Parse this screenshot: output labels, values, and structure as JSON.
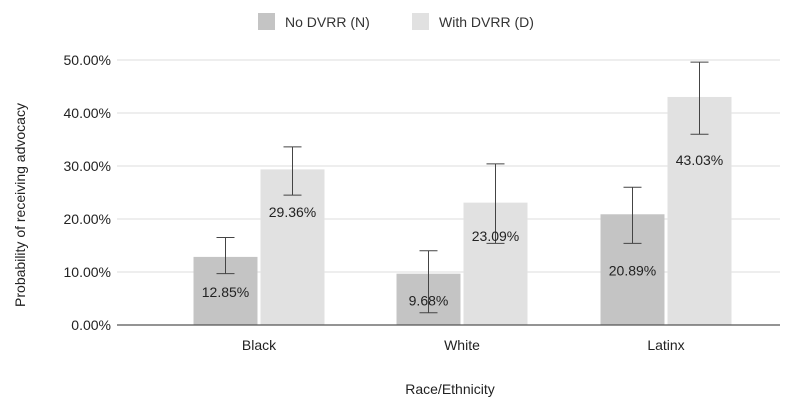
{
  "chart_data": {
    "type": "bar",
    "title": "",
    "xlabel": "Race/Ethnicity",
    "ylabel": "Probability of receiving advocacy",
    "ylim": [
      0,
      50
    ],
    "yticks": [
      "0.00%",
      "10.00%",
      "20.00%",
      "30.00%",
      "40.00%",
      "50.00%"
    ],
    "grid": true,
    "legend_position": "top-center",
    "categories": [
      "Black",
      "White",
      "Latinx"
    ],
    "series": [
      {
        "name": "No DVRR (N)",
        "color": "#c4c4c4",
        "values": [
          12.85,
          9.68,
          20.89
        ],
        "labels": [
          "12.85%",
          "9.68%",
          "20.89%"
        ],
        "error_low": [
          9.7,
          2.3,
          15.4
        ],
        "error_high": [
          16.5,
          14.0,
          26.0
        ]
      },
      {
        "name": "With DVRR (D)",
        "color": "#e1e1e1",
        "values": [
          29.36,
          23.09,
          43.03
        ],
        "labels": [
          "29.36%",
          "23.09%",
          "43.03%"
        ],
        "error_low": [
          24.5,
          15.4,
          36.0
        ],
        "error_high": [
          33.6,
          30.4,
          49.6
        ]
      }
    ]
  }
}
